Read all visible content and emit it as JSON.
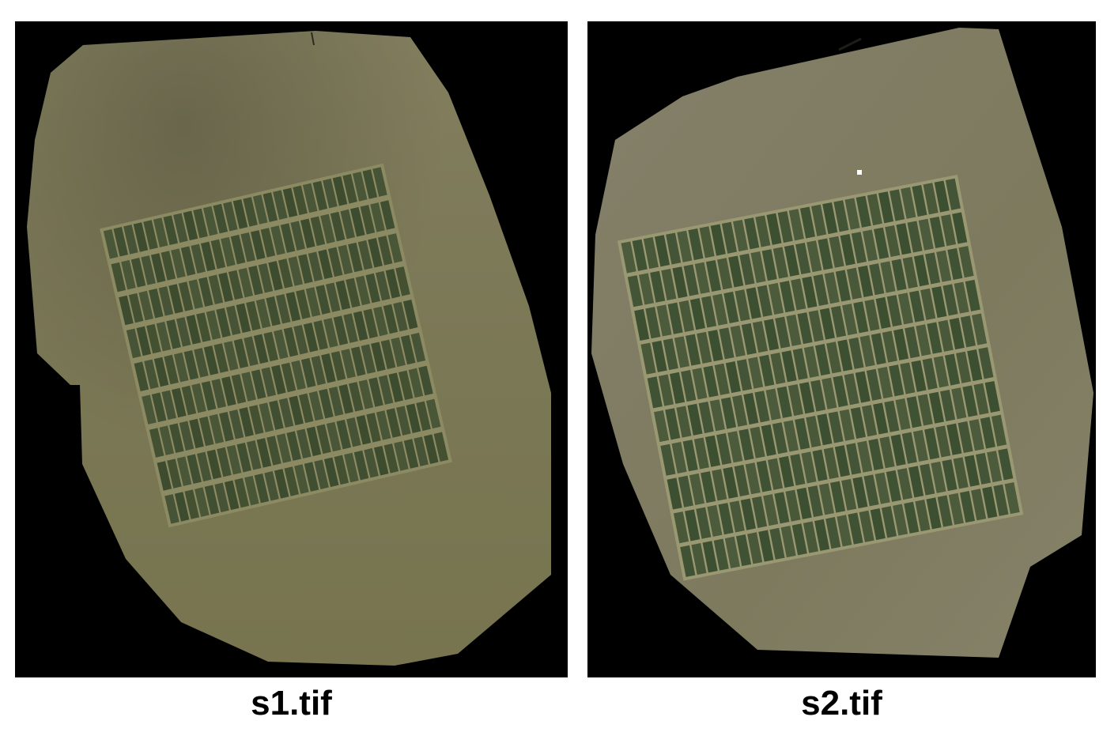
{
  "panels": [
    {
      "caption": "s1.tif",
      "colors": {
        "background": "#000000",
        "field": "#7e7a58",
        "crop": "#3b4a2e",
        "alley": "#8c8a62"
      },
      "grid": {
        "rows": 9,
        "columns": 28
      }
    },
    {
      "caption": "s2.tif",
      "colors": {
        "background": "#000000",
        "field": "#807a5e",
        "crop": "#3a4e30",
        "alley": "#9a9872"
      },
      "grid": {
        "rows": 10,
        "columns": 30
      }
    }
  ]
}
